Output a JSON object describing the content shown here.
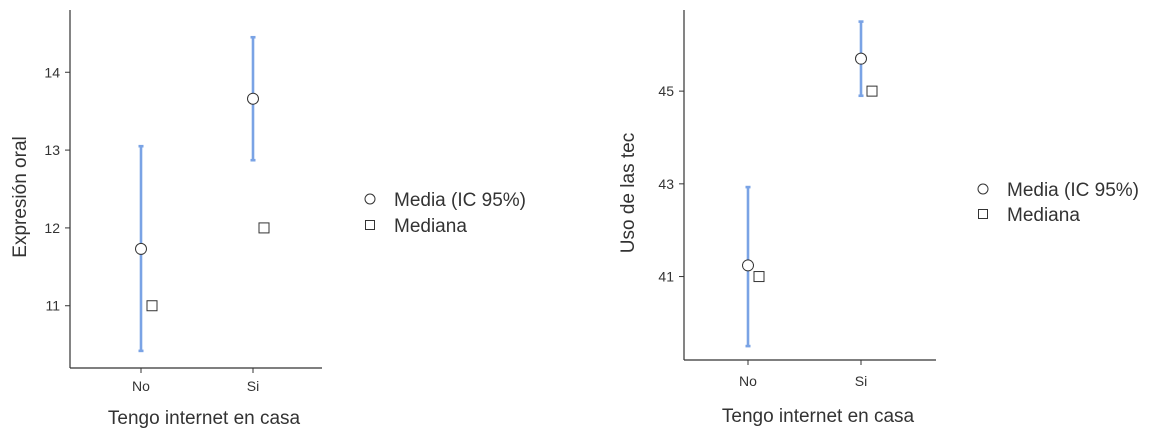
{
  "colors": {
    "ci": "#7aa3e5",
    "axis": "#333333",
    "marker_stroke": "#333333",
    "marker_fill": "#ffffff"
  },
  "chart_data": [
    {
      "type": "scatter",
      "xlabel": "Tengo internet en casa",
      "ylabel": "Expresión oral",
      "categories": [
        "No",
        "Si"
      ],
      "mean": [
        11.73,
        13.66
      ],
      "ci_lower": [
        10.42,
        12.87
      ],
      "ci_upper": [
        13.05,
        14.45
      ],
      "median": [
        11,
        12
      ],
      "ylim": [
        10.2,
        14.8
      ],
      "yticks": [
        11,
        12,
        13,
        14
      ],
      "legend": {
        "position": "right",
        "items": [
          "Media (IC 95%)",
          "Mediana"
        ]
      }
    },
    {
      "type": "scatter",
      "xlabel": "Tengo internet en casa",
      "ylabel": "Uso de las tec",
      "categories": [
        "No",
        "Si"
      ],
      "mean": [
        41.24,
        45.7
      ],
      "ci_lower": [
        39.5,
        44.9
      ],
      "ci_upper": [
        42.93,
        46.5
      ],
      "median": [
        41,
        45
      ],
      "ylim": [
        39.2,
        46.75
      ],
      "yticks": [
        41,
        43,
        45
      ],
      "legend": {
        "position": "right",
        "items": [
          "Media (IC 95%)",
          "Mediana"
        ]
      }
    }
  ]
}
